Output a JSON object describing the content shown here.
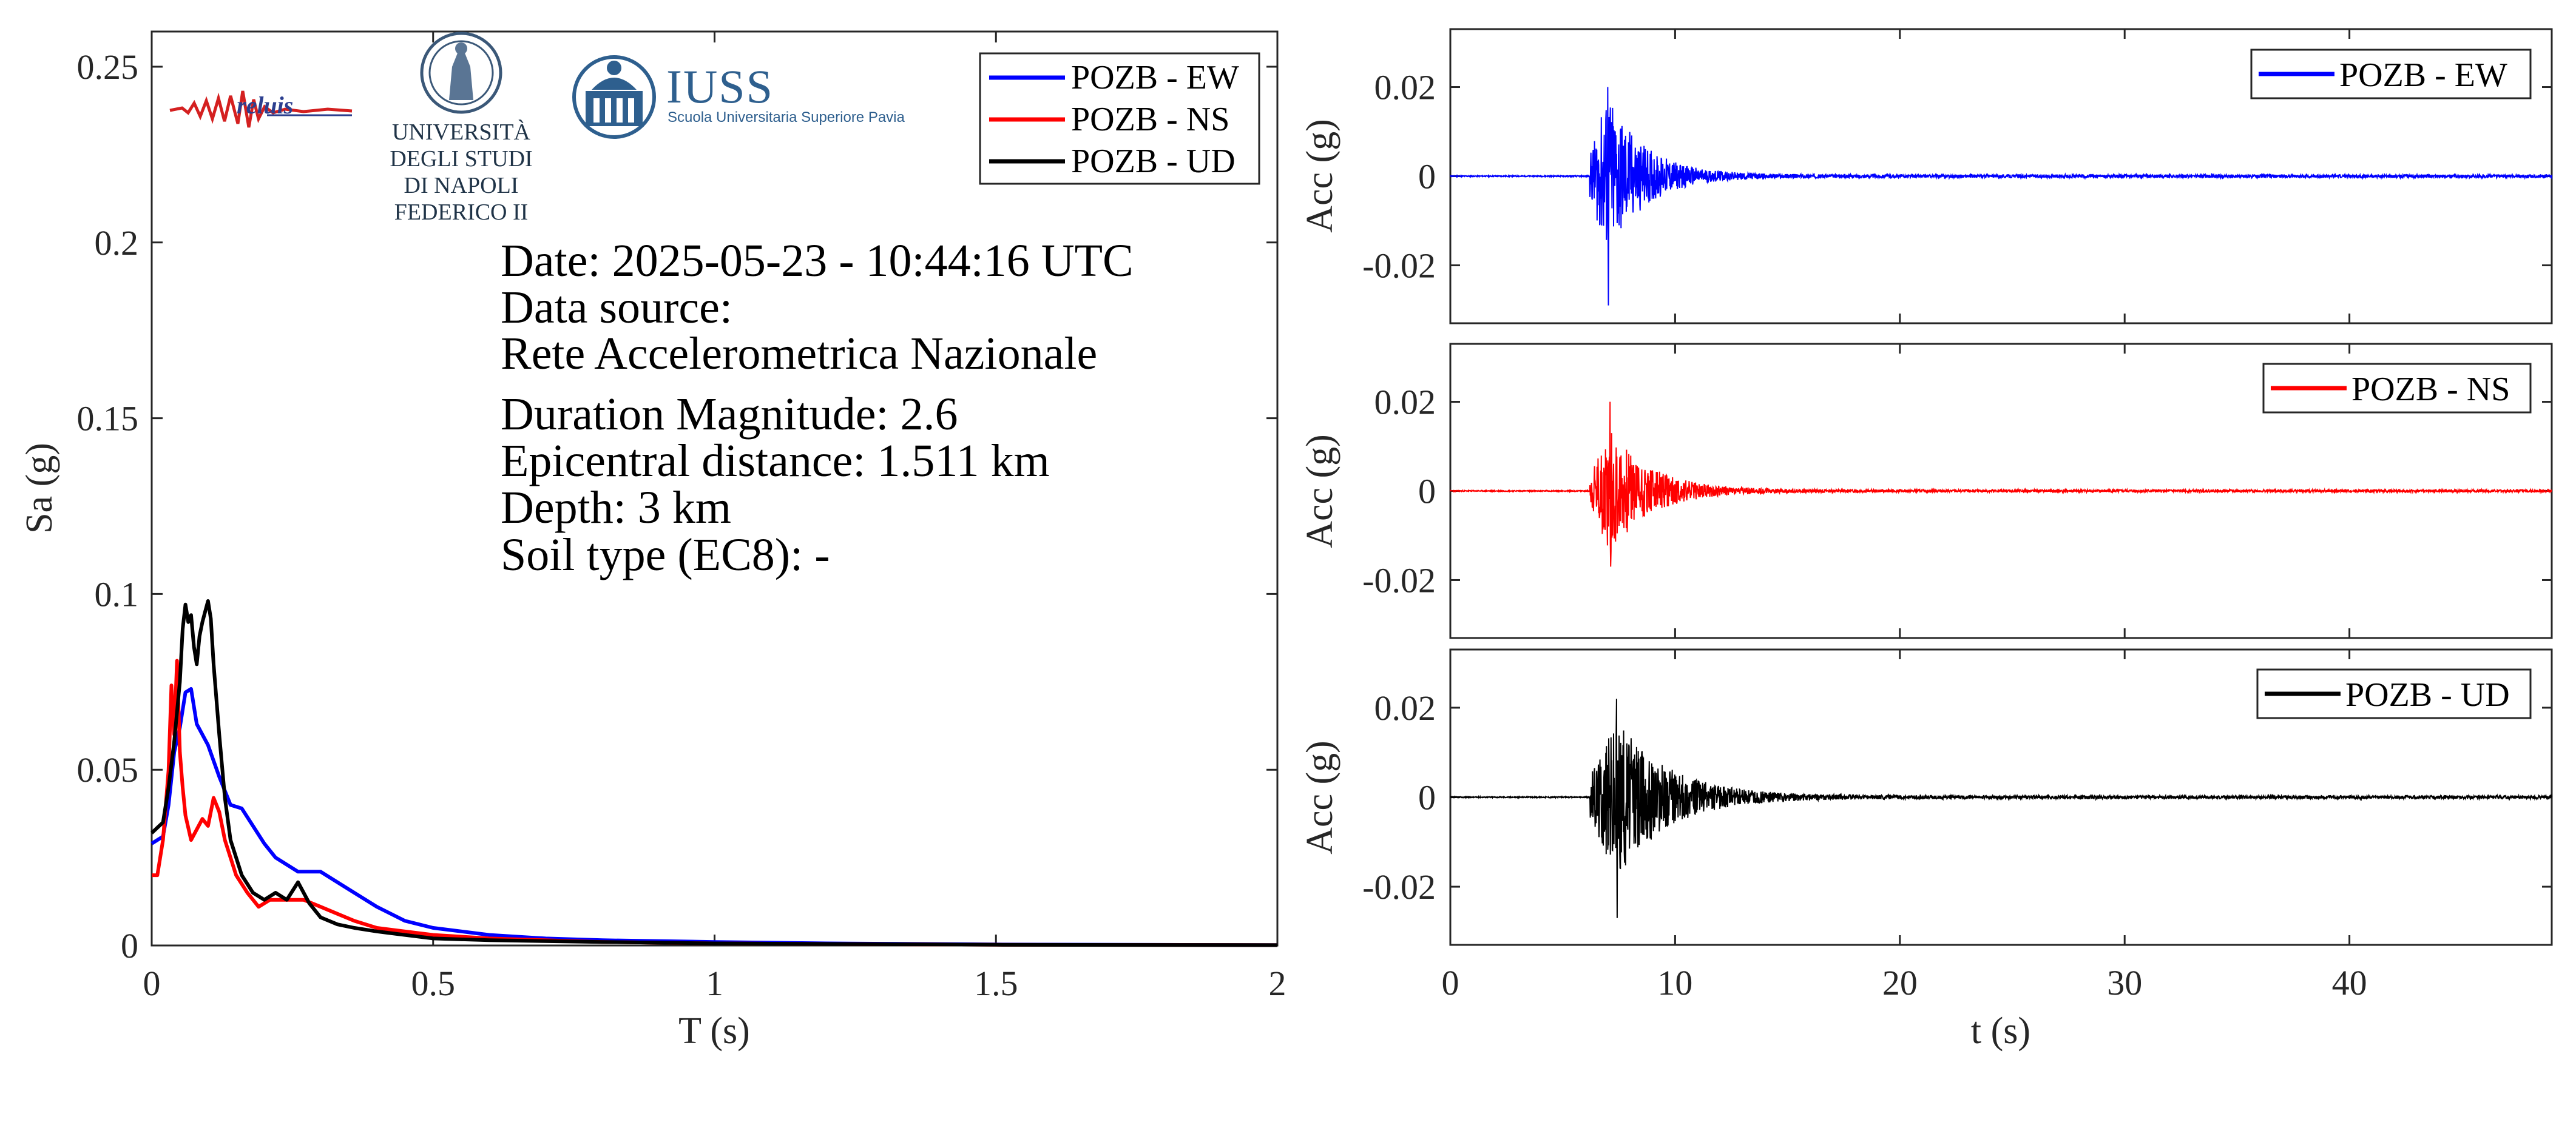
{
  "logos": {
    "reluis": "reluis",
    "unina_line1": "UNIVERSITÀ DEGLI STUDI",
    "unina_line2": "DI NAPOLI FEDERICO II",
    "iuss_title": "IUSS",
    "iuss_subtitle": "Scuola Universitaria Superiore Pavia"
  },
  "info": {
    "date": "Date: 2025-05-23 - 10:44:16 UTC",
    "source_label": "Data source:",
    "source_value": "Rete Accelerometrica Nazionale",
    "magnitude": "Duration Magnitude: 2.6",
    "distance": "Epicentral distance: 1.511 km",
    "depth": "Depth: 3 km",
    "soil": "Soil type (EC8): -"
  },
  "colors": {
    "EW": "#0000ff",
    "NS": "#ff0000",
    "UD": "#000000"
  },
  "chart_data": [
    {
      "type": "line",
      "xlabel": "T (s)",
      "ylabel": "Sa (g)",
      "xlim": [
        0,
        2
      ],
      "ylim": [
        0,
        0.26
      ],
      "xticks": [
        0,
        0.5,
        1,
        1.5,
        2
      ],
      "xticklabels": [
        "0",
        "0.5",
        "1",
        "1.5",
        "2"
      ],
      "yticks": [
        0,
        0.05,
        0.1,
        0.15,
        0.2,
        0.25
      ],
      "yticklabels": [
        "0",
        "0.05",
        "0.1",
        "0.15",
        "0.2",
        "0.25"
      ],
      "legend": "top-right",
      "grid": false,
      "series": [
        {
          "name": "POZB - EW",
          "color": "#0000ff",
          "x": [
            0,
            0.02,
            0.03,
            0.04,
            0.05,
            0.06,
            0.07,
            0.08,
            0.1,
            0.12,
            0.14,
            0.16,
            0.18,
            0.2,
            0.22,
            0.24,
            0.26,
            0.28,
            0.3,
            0.32,
            0.35,
            0.4,
            0.45,
            0.5,
            0.6,
            0.7,
            0.8,
            1.0,
            1.2,
            1.5,
            2.0
          ],
          "y": [
            0.029,
            0.031,
            0.04,
            0.055,
            0.062,
            0.072,
            0.073,
            0.063,
            0.057,
            0.048,
            0.04,
            0.039,
            0.034,
            0.029,
            0.025,
            0.023,
            0.021,
            0.021,
            0.021,
            0.019,
            0.016,
            0.011,
            0.007,
            0.005,
            0.003,
            0.002,
            0.0015,
            0.001,
            0.0006,
            0.0003,
            0.0001
          ]
        },
        {
          "name": "POZB - NS",
          "color": "#ff0000",
          "x": [
            0,
            0.01,
            0.02,
            0.03,
            0.035,
            0.04,
            0.045,
            0.05,
            0.055,
            0.06,
            0.07,
            0.08,
            0.09,
            0.1,
            0.11,
            0.12,
            0.13,
            0.15,
            0.17,
            0.19,
            0.21,
            0.23,
            0.25,
            0.27,
            0.3,
            0.33,
            0.36,
            0.4,
            0.45,
            0.5,
            0.6,
            0.8,
            1.0,
            1.5,
            2.0
          ],
          "y": [
            0.02,
            0.02,
            0.03,
            0.05,
            0.074,
            0.06,
            0.081,
            0.055,
            0.045,
            0.037,
            0.03,
            0.033,
            0.036,
            0.034,
            0.042,
            0.038,
            0.03,
            0.02,
            0.015,
            0.011,
            0.013,
            0.013,
            0.013,
            0.013,
            0.011,
            0.009,
            0.007,
            0.005,
            0.004,
            0.003,
            0.002,
            0.001,
            0.0006,
            0.0002,
            0.0001
          ]
        },
        {
          "name": "POZB - UD",
          "color": "#000000",
          "x": [
            0,
            0.02,
            0.03,
            0.04,
            0.05,
            0.055,
            0.06,
            0.065,
            0.07,
            0.075,
            0.08,
            0.085,
            0.09,
            0.095,
            0.1,
            0.105,
            0.11,
            0.12,
            0.13,
            0.14,
            0.16,
            0.18,
            0.2,
            0.22,
            0.24,
            0.26,
            0.28,
            0.3,
            0.33,
            0.36,
            0.4,
            0.45,
            0.5,
            0.6,
            0.8,
            1.0,
            1.5,
            2.0
          ],
          "y": [
            0.032,
            0.035,
            0.045,
            0.058,
            0.075,
            0.09,
            0.097,
            0.092,
            0.094,
            0.085,
            0.08,
            0.088,
            0.092,
            0.095,
            0.098,
            0.093,
            0.08,
            0.06,
            0.042,
            0.03,
            0.02,
            0.015,
            0.013,
            0.015,
            0.013,
            0.018,
            0.012,
            0.008,
            0.006,
            0.005,
            0.004,
            0.003,
            0.002,
            0.0015,
            0.001,
            0.0006,
            0.0002,
            0.0001
          ]
        }
      ]
    },
    {
      "type": "line",
      "ylabel": "Acc (g)",
      "xlim": [
        0,
        49
      ],
      "ylim": [
        -0.033,
        0.033
      ],
      "yticks": [
        -0.02,
        0,
        0.02
      ],
      "yticklabels": [
        "-0.02",
        "0",
        "0.02"
      ],
      "legend": "top-right",
      "series": [
        {
          "name": "POZB - EW",
          "color": "#0000ff"
        }
      ],
      "shape": {
        "onset": 6.2,
        "peak_time": 7.0,
        "peak_pos": 0.02,
        "peak_neg": -0.029,
        "decay": 1.6,
        "end": 49
      }
    },
    {
      "type": "line",
      "ylabel": "Acc (g)",
      "xlim": [
        0,
        49
      ],
      "ylim": [
        -0.033,
        0.033
      ],
      "yticks": [
        -0.02,
        0,
        0.02
      ],
      "yticklabels": [
        "-0.02",
        "0",
        "0.02"
      ],
      "legend": "top-right",
      "series": [
        {
          "name": "POZB - NS",
          "color": "#ff0000"
        }
      ],
      "shape": {
        "onset": 6.2,
        "peak_time": 7.1,
        "peak_pos": 0.02,
        "peak_neg": -0.017,
        "decay": 1.8,
        "end": 49
      }
    },
    {
      "type": "line",
      "xlabel": "t (s)",
      "ylabel": "Acc (g)",
      "xlim": [
        0,
        49
      ],
      "ylim": [
        -0.033,
        0.033
      ],
      "xticks": [
        0,
        10,
        20,
        30,
        40
      ],
      "xticklabels": [
        "0",
        "10",
        "20",
        "30",
        "40"
      ],
      "yticks": [
        -0.02,
        0,
        0.02
      ],
      "yticklabels": [
        "-0.02",
        "0",
        "0.02"
      ],
      "legend": "top-right",
      "series": [
        {
          "name": "POZB - UD",
          "color": "#000000"
        }
      ],
      "shape": {
        "onset": 6.2,
        "peak_time": 7.4,
        "peak_pos": 0.022,
        "peak_neg": -0.027,
        "decay": 2.2,
        "end": 49
      }
    }
  ]
}
